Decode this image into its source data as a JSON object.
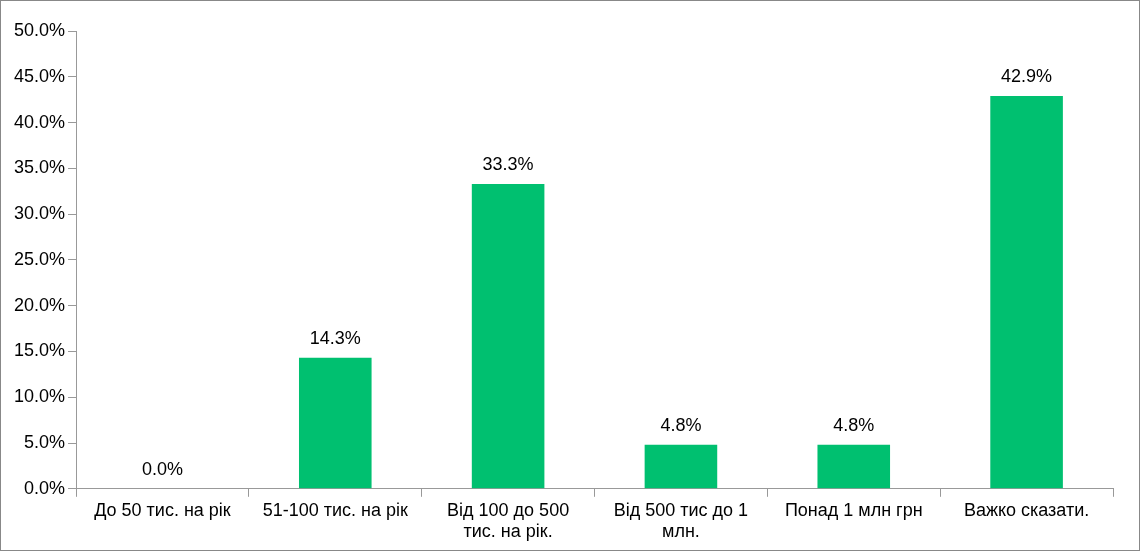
{
  "chart_data": {
    "type": "bar",
    "categories": [
      "До 50 тис. на рік",
      "51-100 тис. на рік",
      "Від 100 до 500 тис. на рік.",
      "Від 500 тис до 1 млн.",
      "Понад 1 млн грн",
      "Важко сказати."
    ],
    "values": [
      0.0,
      14.3,
      33.3,
      4.8,
      4.8,
      42.9
    ],
    "color": "#00c070",
    "ylim": [
      0,
      50
    ],
    "yticks": [
      {
        "value": 0,
        "label": "0.0%"
      },
      {
        "value": 5,
        "label": "5.0%"
      },
      {
        "value": 10,
        "label": "10.0%"
      },
      {
        "value": 15,
        "label": "15.0%"
      },
      {
        "value": 20,
        "label": "20.0%"
      },
      {
        "value": 25,
        "label": "25.0%"
      },
      {
        "value": 30,
        "label": "30.0%"
      },
      {
        "value": 35,
        "label": "35.0%"
      },
      {
        "value": 40,
        "label": "40.0%"
      },
      {
        "value": 45,
        "label": "45.0%"
      },
      {
        "value": 50,
        "label": "50.0%"
      }
    ],
    "value_labels": [
      "0.0%",
      "14.3%",
      "33.3%",
      "4.8%",
      "4.8%",
      "42.9%"
    ],
    "grid": false,
    "legend": false
  }
}
